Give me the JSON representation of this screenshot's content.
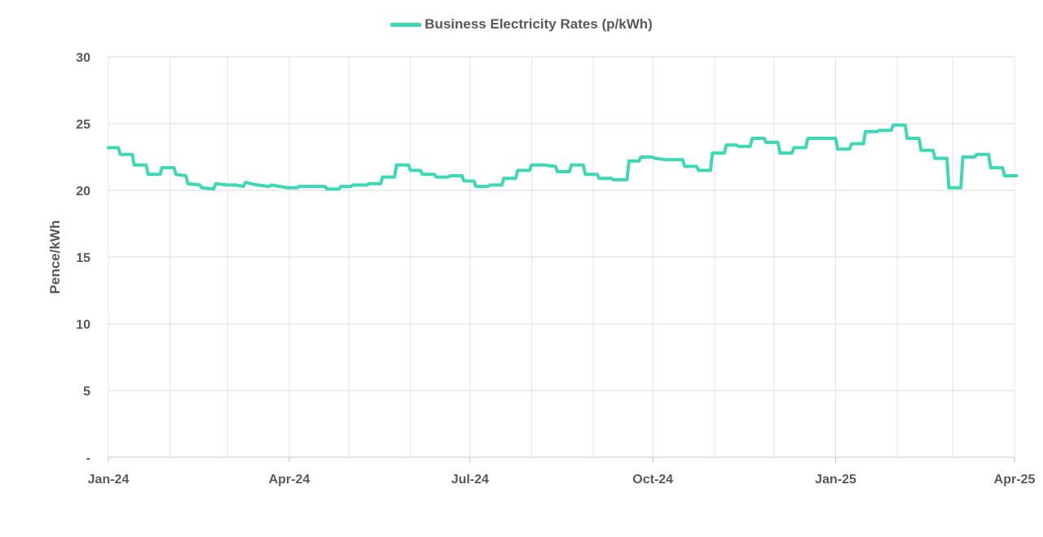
{
  "chart_data": {
    "type": "line",
    "title": "",
    "ylabel": "Pence/kWh",
    "xlabel": "",
    "ylim": [
      0,
      30
    ],
    "yticks": [
      0,
      5,
      10,
      15,
      20,
      25,
      30
    ],
    "ytick_labels": [
      "-",
      "5",
      "10",
      "15",
      "20",
      "25",
      "30"
    ],
    "xlim": [
      0,
      456
    ],
    "xticks": [
      {
        "x": 0,
        "label": "Jan-24"
      },
      {
        "x": 91,
        "label": "Apr-24"
      },
      {
        "x": 182,
        "label": "Jul-24"
      },
      {
        "x": 274,
        "label": "Oct-24"
      },
      {
        "x": 366,
        "label": "Jan-25"
      },
      {
        "x": 456,
        "label": "Apr-25"
      }
    ],
    "x_gridlines": [
      0,
      31,
      60,
      91,
      121,
      152,
      182,
      213,
      244,
      274,
      305,
      335,
      366,
      397,
      425,
      456
    ],
    "grid": true,
    "legend": "top-center",
    "series": [
      {
        "name": "Business Electricity Rates (p/kWh)",
        "color": "#3dd9b4",
        "points": [
          [
            0,
            23.2
          ],
          [
            5,
            23.2
          ],
          [
            6,
            22.7
          ],
          [
            12,
            22.7
          ],
          [
            13,
            21.9
          ],
          [
            19,
            21.9
          ],
          [
            20,
            21.2
          ],
          [
            26,
            21.2
          ],
          [
            27,
            21.7
          ],
          [
            33,
            21.7
          ],
          [
            34,
            21.2
          ],
          [
            39,
            21.1
          ],
          [
            40,
            20.5
          ],
          [
            46,
            20.4
          ],
          [
            47,
            20.2
          ],
          [
            53,
            20.1
          ],
          [
            54,
            20.5
          ],
          [
            60,
            20.4
          ],
          [
            64,
            20.4
          ],
          [
            68,
            20.3
          ],
          [
            69,
            20.6
          ],
          [
            75,
            20.4
          ],
          [
            81,
            20.3
          ],
          [
            82,
            20.4
          ],
          [
            90,
            20.2
          ],
          [
            95,
            20.2
          ],
          [
            96,
            20.3
          ],
          [
            109,
            20.3
          ],
          [
            110,
            20.1
          ],
          [
            116,
            20.1
          ],
          [
            117,
            20.3
          ],
          [
            122,
            20.3
          ],
          [
            123,
            20.4
          ],
          [
            130,
            20.4
          ],
          [
            131,
            20.5
          ],
          [
            137,
            20.5
          ],
          [
            138,
            21.0
          ],
          [
            144,
            21.0
          ],
          [
            145,
            21.9
          ],
          [
            151,
            21.9
          ],
          [
            152,
            21.5
          ],
          [
            157,
            21.5
          ],
          [
            158,
            21.2
          ],
          [
            164,
            21.2
          ],
          [
            165,
            21.0
          ],
          [
            171,
            21.0
          ],
          [
            172,
            21.1
          ],
          [
            178,
            21.1
          ],
          [
            179,
            20.7
          ],
          [
            184,
            20.7
          ],
          [
            185,
            20.3
          ],
          [
            191,
            20.3
          ],
          [
            192,
            20.4
          ],
          [
            198,
            20.4
          ],
          [
            199,
            20.9
          ],
          [
            205,
            20.9
          ],
          [
            206,
            21.5
          ],
          [
            212,
            21.5
          ],
          [
            213,
            21.9
          ],
          [
            219,
            21.9
          ],
          [
            225,
            21.8
          ],
          [
            226,
            21.4
          ],
          [
            232,
            21.4
          ],
          [
            233,
            21.9
          ],
          [
            239,
            21.9
          ],
          [
            240,
            21.2
          ],
          [
            246,
            21.2
          ],
          [
            247,
            20.9
          ],
          [
            253,
            20.9
          ],
          [
            254,
            20.8
          ],
          [
            261,
            20.8
          ],
          [
            262,
            22.2
          ],
          [
            267,
            22.2
          ],
          [
            268,
            22.5
          ],
          [
            274,
            22.5
          ],
          [
            275,
            22.4
          ],
          [
            281,
            22.3
          ],
          [
            289,
            22.3
          ],
          [
            290,
            21.8
          ],
          [
            296,
            21.8
          ],
          [
            297,
            21.5
          ],
          [
            303,
            21.5
          ],
          [
            304,
            22.8
          ],
          [
            310,
            22.8
          ],
          [
            311,
            23.4
          ],
          [
            316,
            23.4
          ],
          [
            317,
            23.3
          ],
          [
            323,
            23.3
          ],
          [
            324,
            23.9
          ],
          [
            330,
            23.9
          ],
          [
            331,
            23.6
          ],
          [
            337,
            23.6
          ],
          [
            338,
            22.8
          ],
          [
            344,
            22.8
          ],
          [
            345,
            23.2
          ],
          [
            351,
            23.2
          ],
          [
            352,
            23.9
          ],
          [
            366,
            23.9
          ],
          [
            367,
            23.1
          ],
          [
            373,
            23.1
          ],
          [
            374,
            23.5
          ],
          [
            380,
            23.5
          ],
          [
            381,
            24.4
          ],
          [
            387,
            24.4
          ],
          [
            388,
            24.5
          ],
          [
            394,
            24.5
          ],
          [
            395,
            24.9
          ],
          [
            401,
            24.9
          ],
          [
            402,
            23.9
          ],
          [
            408,
            23.9
          ],
          [
            409,
            23.0
          ],
          [
            415,
            23.0
          ],
          [
            416,
            22.4
          ],
          [
            422,
            22.4
          ],
          [
            423,
            20.2
          ],
          [
            429,
            20.2
          ],
          [
            430,
            22.5
          ],
          [
            436,
            22.5
          ],
          [
            437,
            22.7
          ],
          [
            443,
            22.7
          ],
          [
            444,
            21.7
          ],
          [
            450,
            21.7
          ],
          [
            451,
            21.1
          ],
          [
            456,
            21.1
          ],
          [
            457,
            21.1
          ]
        ]
      }
    ]
  }
}
